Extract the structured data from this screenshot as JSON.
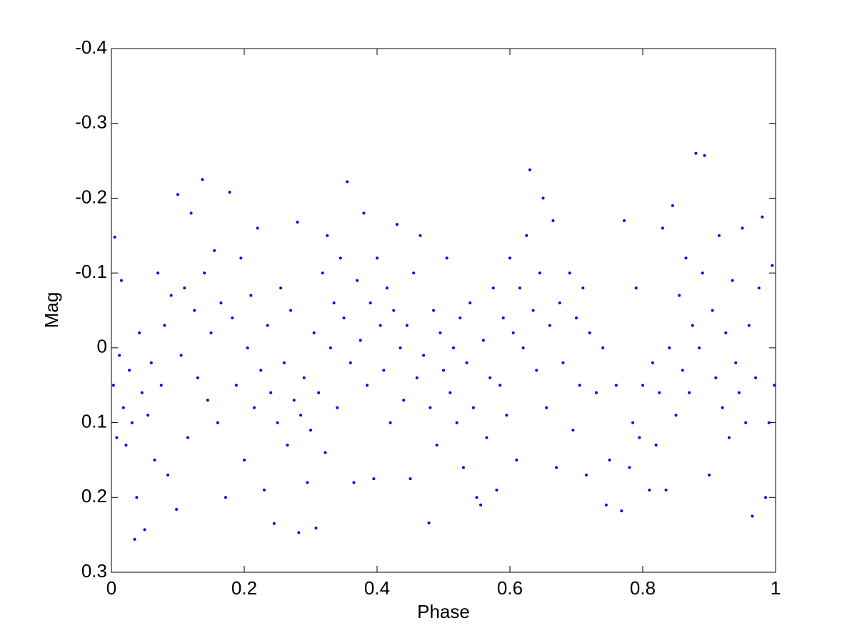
{
  "chart_data": {
    "type": "scatter",
    "x_label": "Phase",
    "y_label": "Mag",
    "color": "#0000ff",
    "xlim": [
      0,
      1
    ],
    "xticks": [
      0,
      0.2,
      0.4,
      0.6,
      0.8,
      1
    ],
    "ylim": [
      0.3,
      -0.4
    ],
    "yticks": [
      -0.4,
      -0.3,
      -0.2,
      -0.1,
      0,
      0.1,
      0.2,
      0.3
    ],
    "x": [
      0.003,
      0.005,
      0.008,
      0.012,
      0.015,
      0.018,
      0.022,
      0.027,
      0.031,
      0.035,
      0.038,
      0.042,
      0.046,
      0.05,
      0.055,
      0.06,
      0.065,
      0.07,
      0.075,
      0.08,
      0.085,
      0.09,
      0.098,
      0.1,
      0.105,
      0.11,
      0.115,
      0.12,
      0.125,
      0.13,
      0.137,
      0.14,
      0.145,
      0.15,
      0.155,
      0.16,
      0.165,
      0.172,
      0.178,
      0.182,
      0.188,
      0.195,
      0.2,
      0.205,
      0.21,
      0.215,
      0.22,
      0.225,
      0.23,
      0.235,
      0.24,
      0.245,
      0.25,
      0.255,
      0.26,
      0.265,
      0.27,
      0.275,
      0.28,
      0.282,
      0.285,
      0.29,
      0.295,
      0.3,
      0.305,
      0.308,
      0.312,
      0.318,
      0.322,
      0.325,
      0.33,
      0.335,
      0.34,
      0.345,
      0.35,
      0.355,
      0.36,
      0.365,
      0.37,
      0.375,
      0.38,
      0.385,
      0.39,
      0.395,
      0.4,
      0.405,
      0.41,
      0.415,
      0.42,
      0.425,
      0.43,
      0.435,
      0.44,
      0.445,
      0.45,
      0.455,
      0.46,
      0.465,
      0.47,
      0.478,
      0.48,
      0.485,
      0.49,
      0.495,
      0.5,
      0.505,
      0.51,
      0.515,
      0.52,
      0.525,
      0.53,
      0.535,
      0.54,
      0.545,
      0.55,
      0.556,
      0.56,
      0.565,
      0.57,
      0.575,
      0.58,
      0.585,
      0.59,
      0.595,
      0.6,
      0.605,
      0.61,
      0.615,
      0.62,
      0.625,
      0.63,
      0.635,
      0.64,
      0.645,
      0.65,
      0.655,
      0.66,
      0.665,
      0.67,
      0.675,
      0.68,
      0.69,
      0.695,
      0.7,
      0.705,
      0.71,
      0.715,
      0.72,
      0.73,
      0.74,
      0.745,
      0.75,
      0.76,
      0.768,
      0.772,
      0.78,
      0.785,
      0.79,
      0.795,
      0.8,
      0.81,
      0.815,
      0.82,
      0.825,
      0.83,
      0.835,
      0.84,
      0.845,
      0.85,
      0.855,
      0.86,
      0.865,
      0.87,
      0.875,
      0.88,
      0.885,
      0.89,
      0.893,
      0.9,
      0.905,
      0.91,
      0.915,
      0.92,
      0.925,
      0.93,
      0.935,
      0.94,
      0.945,
      0.95,
      0.955,
      0.96,
      0.965,
      0.97,
      0.975,
      0.98,
      0.985,
      0.99,
      0.995,
      0.998
    ],
    "values": [
      0.05,
      -0.148,
      0.12,
      0.01,
      -0.09,
      0.08,
      0.13,
      0.03,
      0.1,
      0.256,
      0.2,
      -0.02,
      0.06,
      0.243,
      0.09,
      0.02,
      0.15,
      -0.1,
      0.05,
      -0.03,
      0.17,
      -0.07,
      0.216,
      -0.205,
      0.01,
      -0.08,
      0.12,
      -0.18,
      -0.05,
      0.04,
      -0.225,
      -0.1,
      0.07,
      -0.02,
      -0.13,
      0.1,
      -0.06,
      0.2,
      -0.208,
      -0.04,
      0.05,
      -0.12,
      0.15,
      0,
      -0.07,
      0.08,
      -0.16,
      0.03,
      0.19,
      -0.03,
      0.06,
      0.235,
      0.1,
      -0.08,
      0.02,
      0.13,
      -0.05,
      0.07,
      -0.168,
      0.247,
      0.09,
      0.04,
      0.18,
      0.11,
      -0.02,
      0.241,
      0.06,
      -0.1,
      0.14,
      -0.15,
      0,
      -0.06,
      0.08,
      -0.12,
      -0.04,
      -0.222,
      0.02,
      0.18,
      -0.09,
      -0.01,
      -0.18,
      0.05,
      -0.06,
      0.175,
      -0.12,
      -0.03,
      0.03,
      -0.08,
      0.1,
      -0.05,
      -0.165,
      0,
      0.07,
      -0.03,
      0.175,
      -0.1,
      0.04,
      -0.15,
      0.01,
      0.234,
      0.08,
      -0.05,
      0.13,
      -0.02,
      0.03,
      -0.12,
      0.06,
      0,
      0.1,
      -0.04,
      0.16,
      0.02,
      -0.06,
      0.08,
      0.2,
      0.21,
      -0.01,
      0.12,
      0.04,
      -0.08,
      0.19,
      0.05,
      -0.04,
      0.09,
      -0.12,
      -0.02,
      0.15,
      -0.08,
      0,
      -0.15,
      -0.238,
      -0.05,
      0.03,
      -0.1,
      -0.2,
      0.08,
      -0.03,
      -0.17,
      0.16,
      -0.06,
      0.02,
      -0.1,
      0.11,
      -0.04,
      0.05,
      -0.08,
      0.17,
      -0.02,
      0.06,
      0,
      0.21,
      0.15,
      0.05,
      0.218,
      -0.17,
      0.16,
      0.1,
      -0.08,
      0.12,
      0.05,
      0.19,
      0.02,
      0.13,
      0.06,
      -0.16,
      0.19,
      0,
      -0.19,
      0.09,
      -0.07,
      0.03,
      -0.12,
      0.06,
      -0.03,
      -0.26,
      0,
      -0.1,
      -0.257,
      0.17,
      -0.05,
      0.04,
      -0.15,
      0.08,
      -0.02,
      0.12,
      -0.09,
      0.02,
      0.06,
      -0.16,
      0.1,
      -0.03,
      0.225,
      0.04,
      -0.08,
      -0.175,
      0.2,
      0.1,
      -0.11,
      0.05
    ]
  }
}
